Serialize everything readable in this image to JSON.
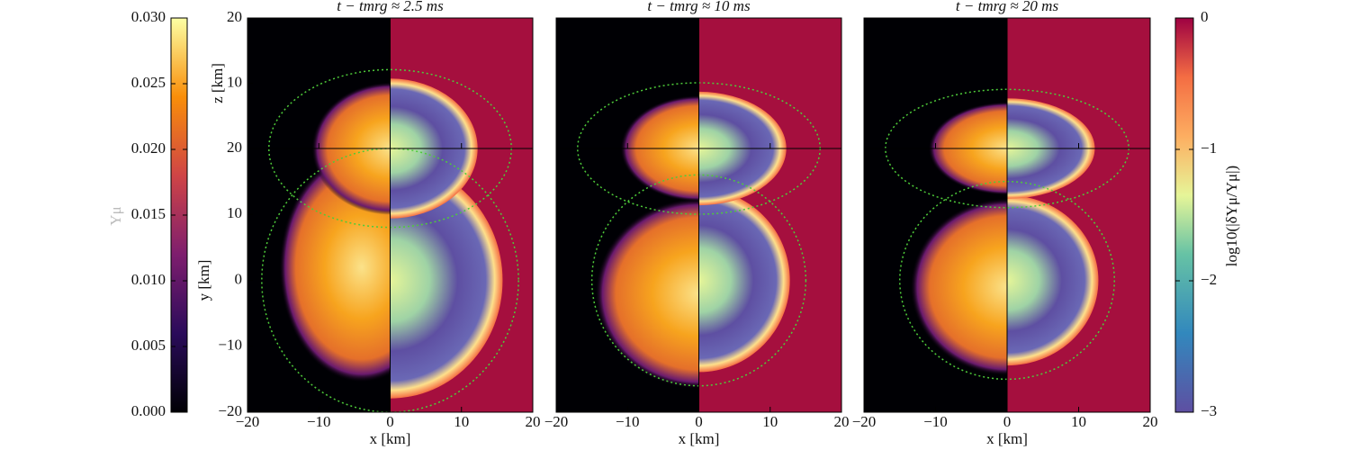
{
  "chart_data": [
    {
      "type": "colorbar",
      "side": "left",
      "colormap": "inferno",
      "label": "Yμ",
      "lim": [
        0,
        0.03
      ],
      "ticks": [
        {
          "value": 0,
          "label": "0.000"
        },
        {
          "value": 0.005,
          "label": "0.005"
        },
        {
          "value": 0.01,
          "label": "0.010"
        },
        {
          "value": 0.015,
          "label": "0.015"
        },
        {
          "value": 0.02,
          "label": "0.020"
        },
        {
          "value": 0.025,
          "label": "0.025"
        },
        {
          "value": 0.03,
          "label": "0.030"
        }
      ]
    },
    {
      "type": "image",
      "title": "t − tmrg ≈ 2.5 ms",
      "xlabel": "x [km]",
      "ylabel": "y [km]",
      "zlabel": "z [km]",
      "xlim": [
        -20,
        20
      ],
      "ylim": [
        -20,
        20
      ],
      "zlim": [
        0,
        20
      ],
      "xticks": [
        {
          "value": -20,
          "label": "−20"
        },
        {
          "value": -10,
          "label": "−10"
        },
        0,
        10,
        20
      ],
      "yticks": [
        {
          "value": -20,
          "label": "−20"
        },
        {
          "value": -10,
          "label": "−10"
        },
        0,
        10,
        20
      ],
      "zticks": [
        10,
        20
      ]
    },
    {
      "type": "image",
      "title": "t − tmrg ≈ 10 ms",
      "xlabel": "x [km]",
      "xlim": [
        -20,
        20
      ],
      "ylim": [
        -20,
        20
      ],
      "zlim": [
        0,
        20
      ],
      "xticks": [
        {
          "value": -20,
          "label": "−20"
        },
        {
          "value": -10,
          "label": "−10"
        },
        0,
        10,
        20
      ]
    },
    {
      "type": "image",
      "title": "t − tmrg ≈ 20 ms",
      "xlabel": "x [km]",
      "xlim": [
        -20,
        20
      ],
      "ylim": [
        -20,
        20
      ],
      "zlim": [
        0,
        20
      ],
      "xticks": [
        {
          "value": -20,
          "label": "−20"
        },
        {
          "value": -10,
          "label": "−10"
        },
        0,
        10,
        20
      ]
    },
    {
      "type": "colorbar",
      "side": "right",
      "colormap": "Spectral",
      "label": "log10(|δYμ/Yμ|)",
      "lim": [
        -3,
        0
      ],
      "ticks": [
        {
          "value": -3,
          "label": "−3"
        },
        {
          "value": -2,
          "label": "−2"
        },
        {
          "value": -1,
          "label": "−1"
        },
        0
      ]
    }
  ]
}
